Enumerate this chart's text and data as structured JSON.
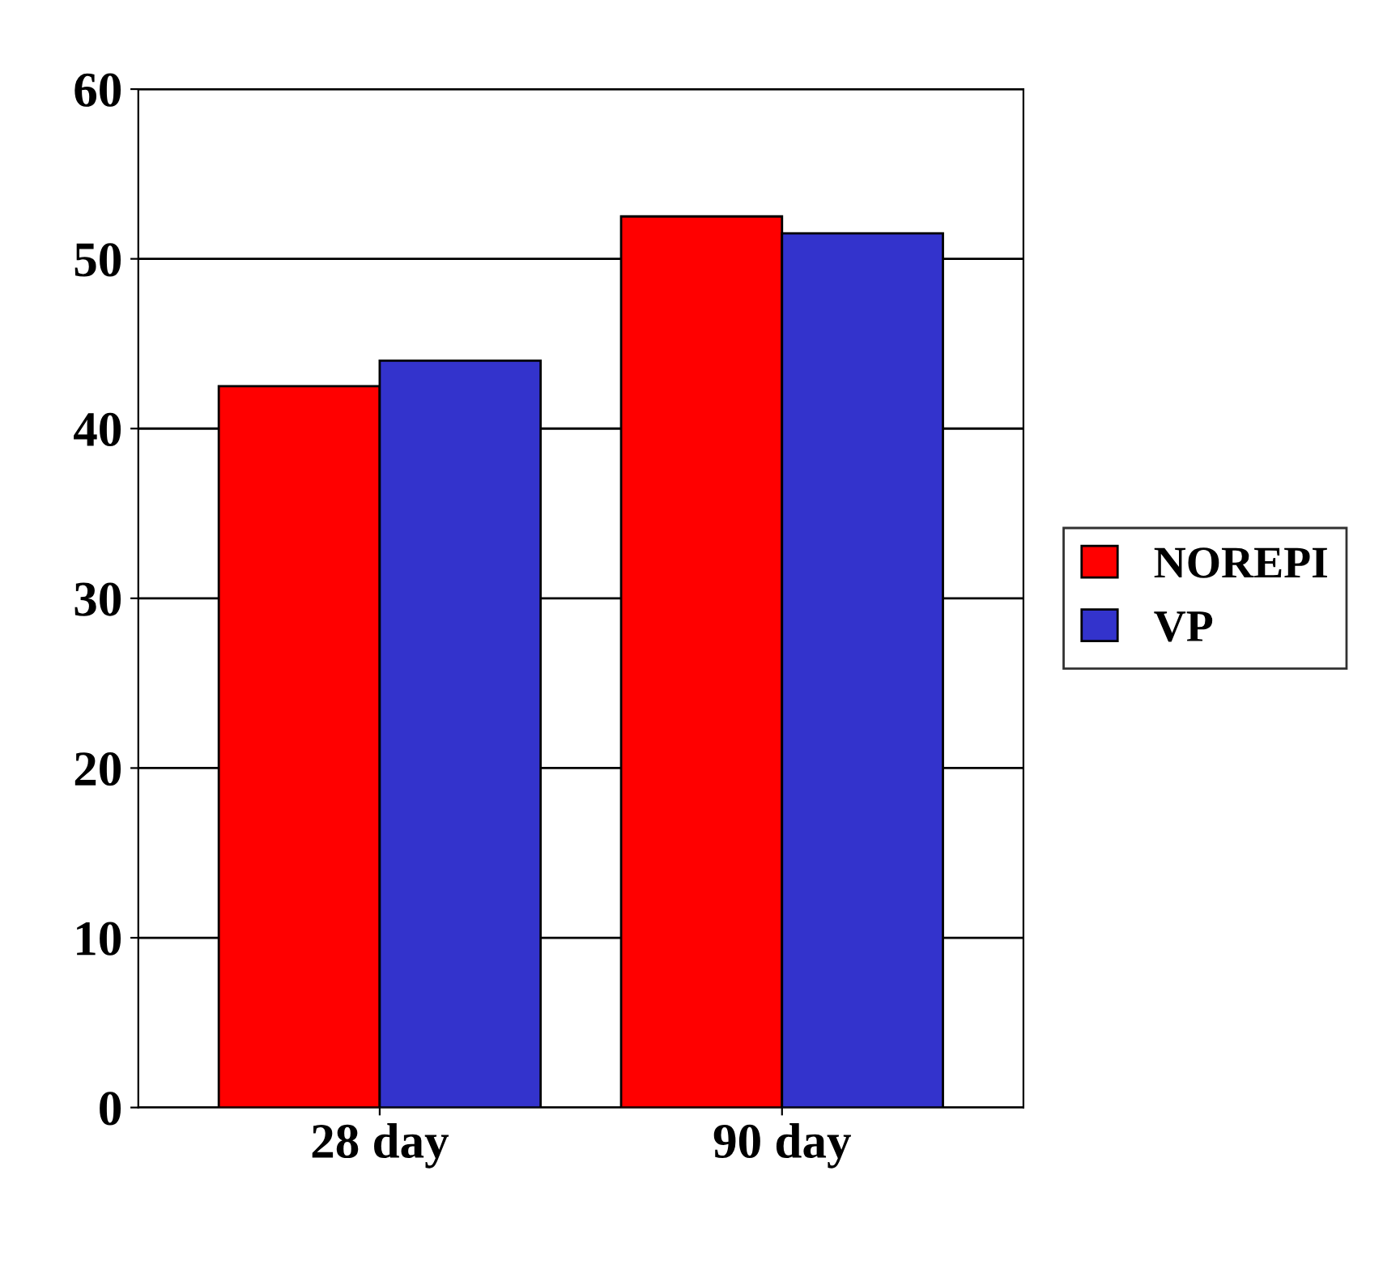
{
  "chart_data": {
    "type": "bar",
    "categories": [
      "28 day",
      "90 day"
    ],
    "series": [
      {
        "name": "NOREPI",
        "color": "#ff0000",
        "values": [
          42.5,
          52.5
        ]
      },
      {
        "name": "VP",
        "color": "#3333cc",
        "values": [
          44,
          51.5
        ]
      }
    ],
    "ylim": [
      0,
      60
    ],
    "yticks": [
      0,
      10,
      20,
      30,
      40,
      50,
      60
    ],
    "grid": "y",
    "legend": "right"
  }
}
